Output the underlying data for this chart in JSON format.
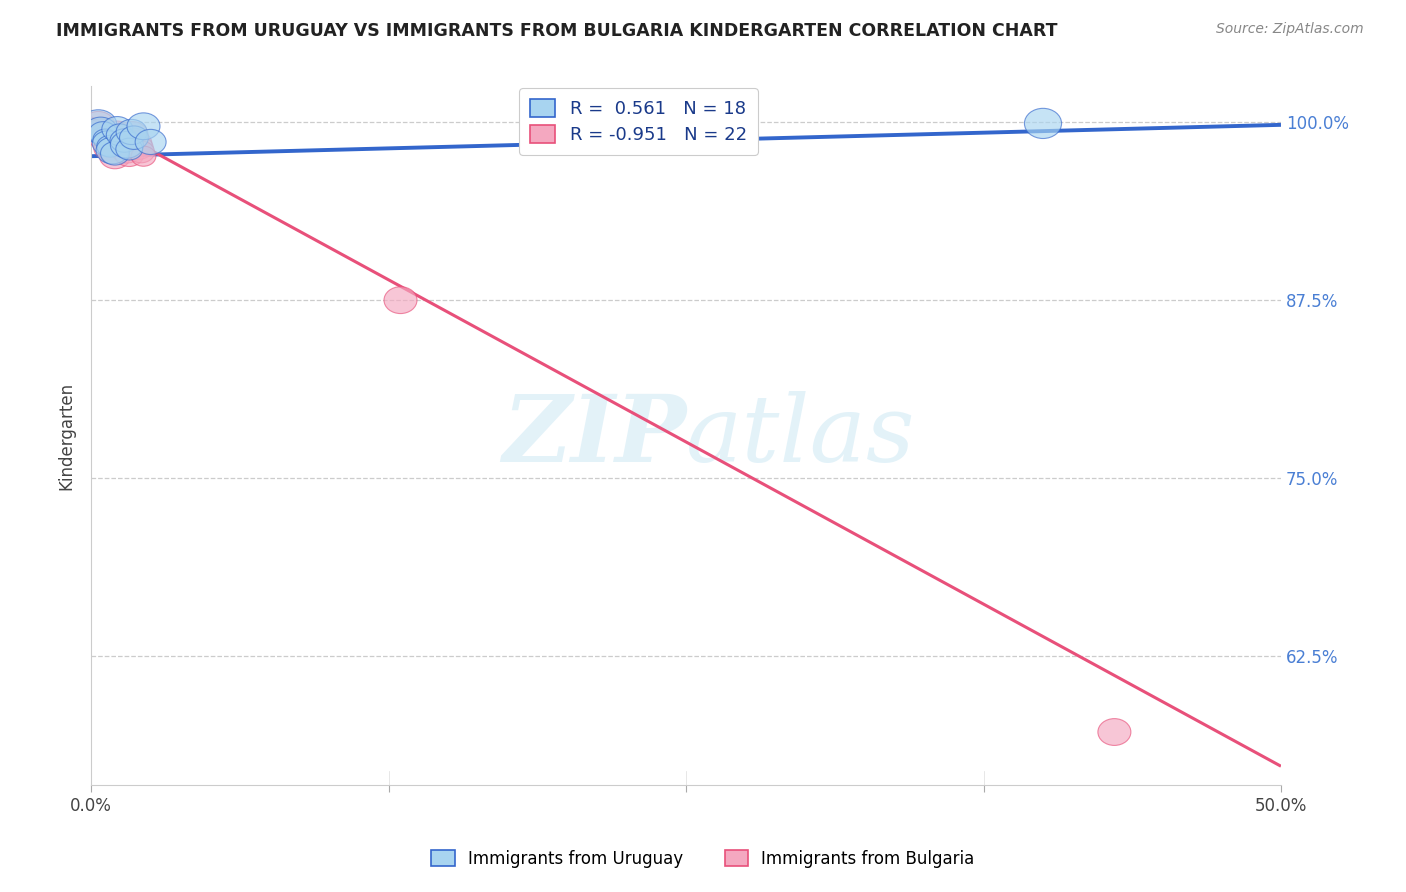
{
  "title": "IMMIGRANTS FROM URUGUAY VS IMMIGRANTS FROM BULGARIA KINDERGARTEN CORRELATION CHART",
  "source": "Source: ZipAtlas.com",
  "ylabel": "Kindergarten",
  "xlim": [
    0.0,
    0.5
  ],
  "ylim": [
    0.535,
    1.025
  ],
  "xtick_labels": [
    "0.0%",
    "",
    "",
    "",
    "50.0%"
  ],
  "xtick_values": [
    0.0,
    0.125,
    0.25,
    0.375,
    0.5
  ],
  "ytick_labels": [
    "62.5%",
    "75.0%",
    "87.5%",
    "100.0%"
  ],
  "ytick_values": [
    0.625,
    0.75,
    0.875,
    1.0
  ],
  "legend_r1": "R =  0.561   N = 18",
  "legend_r2": "R = -0.951   N = 22",
  "legend_label1": "Immigrants from Uruguay",
  "legend_label2": "Immigrants from Bulgaria",
  "color_uruguay": "#a8d4f0",
  "color_bulgaria": "#f4a8c0",
  "color_line_uruguay": "#3366cc",
  "color_line_bulgaria": "#e8507a",
  "watermark_zip": "ZIP",
  "watermark_atlas": "atlas",
  "uruguay_scatter_x": [
    0.003,
    0.004,
    0.005,
    0.006,
    0.007,
    0.008,
    0.009,
    0.01,
    0.011,
    0.012,
    0.014,
    0.015,
    0.016,
    0.017,
    0.018,
    0.022,
    0.025,
    0.4
  ],
  "uruguay_scatter_y": [
    0.998,
    0.994,
    0.992,
    0.988,
    0.985,
    0.983,
    0.98,
    0.978,
    0.995,
    0.991,
    0.987,
    0.984,
    0.981,
    0.993,
    0.989,
    0.997,
    0.986,
    0.999
  ],
  "uruguay_scatter_size": [
    18,
    16,
    14,
    12,
    15,
    13,
    16,
    14,
    15,
    13,
    14,
    16,
    13,
    15,
    14,
    16,
    15,
    18
  ],
  "bulgaria_scatter_x": [
    0.003,
    0.004,
    0.005,
    0.006,
    0.007,
    0.008,
    0.009,
    0.01,
    0.011,
    0.012,
    0.013,
    0.014,
    0.015,
    0.016,
    0.017,
    0.018,
    0.019,
    0.02,
    0.021,
    0.022,
    0.13,
    0.43
  ],
  "bulgaria_scatter_y": [
    0.998,
    0.994,
    0.992,
    0.988,
    0.985,
    0.982,
    0.979,
    0.976,
    0.993,
    0.989,
    0.986,
    0.983,
    0.98,
    0.977,
    0.991,
    0.988,
    0.985,
    0.982,
    0.979,
    0.976,
    0.875,
    0.572
  ],
  "bulgaria_scatter_size": [
    16,
    14,
    12,
    15,
    13,
    16,
    14,
    15,
    13,
    14,
    16,
    13,
    15,
    14,
    16,
    13,
    15,
    14,
    13,
    12,
    16,
    16
  ],
  "uruguay_line_x": [
    0.0,
    0.5
  ],
  "uruguay_line_y": [
    0.976,
    0.998
  ],
  "bulgaria_line_x": [
    0.0,
    0.5
  ],
  "bulgaria_line_y": [
    1.003,
    0.548
  ]
}
